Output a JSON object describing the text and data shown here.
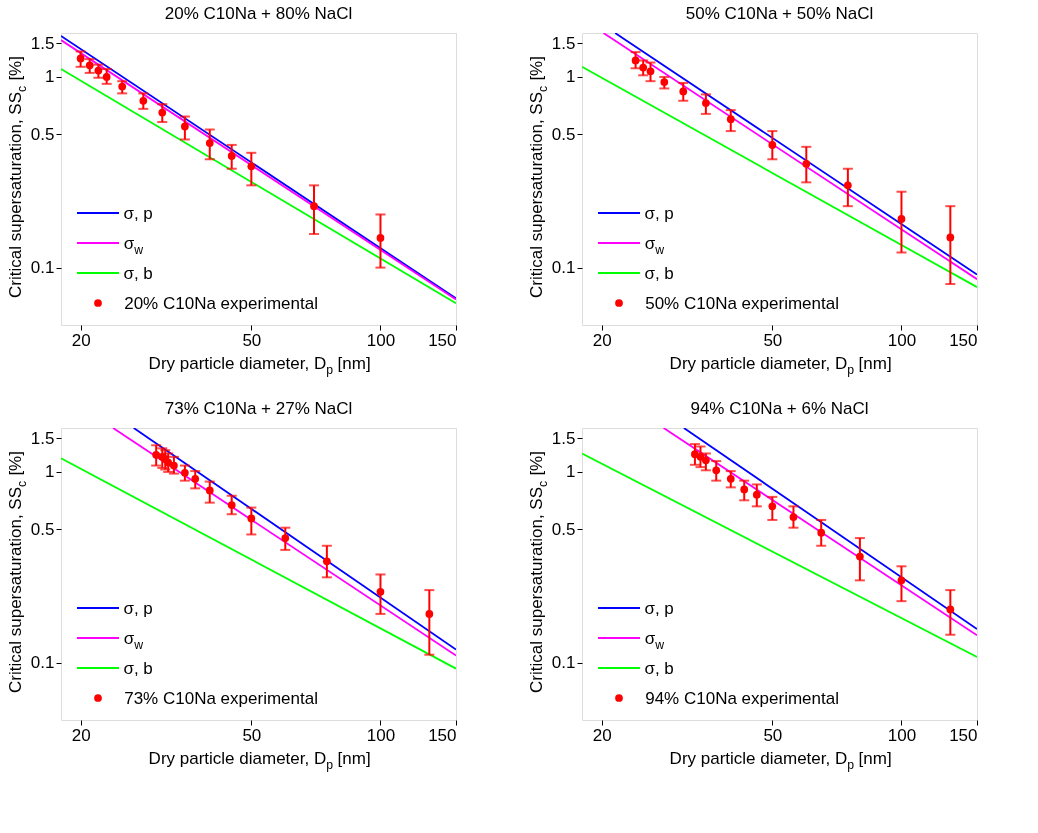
{
  "chart_data": [
    {
      "type": "line",
      "title": "20% C10Na + 80% NaCl",
      "xlabel": "Dry particle diameter, D$_{p}$ [nm]",
      "ylabel": "Critical supersaturation, SS$_{c}$ [%]",
      "log": "xy",
      "xlim": [
        18,
        150
      ],
      "ylim": [
        0.05,
        1.7
      ],
      "xticks": [
        20,
        50,
        100,
        150
      ],
      "yticks": [
        0.1,
        0.5,
        1,
        1.5
      ],
      "legend": "bottom left",
      "series": [
        {
          "name": "σ, p",
          "color": "#0000ff",
          "x": [
            18,
            150
          ],
          "values": [
            1.64,
            0.069
          ]
        },
        {
          "name": "σ$_{w}$",
          "color": "#ff00ff",
          "x": [
            18,
            150
          ],
          "values": [
            1.56,
            0.068
          ]
        },
        {
          "name": "σ, b",
          "color": "#00ff00",
          "x": [
            18,
            150
          ],
          "values": [
            1.1,
            0.065
          ]
        },
        {
          "name": "20% C10Na experimental",
          "type": "scatter",
          "marker": "circle",
          "color": "#ff0000",
          "x": [
            20,
            21,
            22,
            23,
            25,
            28,
            31,
            35,
            40,
            45,
            50,
            70,
            100
          ],
          "values": [
            1.25,
            1.15,
            1.08,
            1.0,
            0.89,
            0.75,
            0.65,
            0.55,
            0.45,
            0.385,
            0.34,
            0.21,
            0.143
          ],
          "errors": [
            [
              1.13,
              1.36
            ],
            [
              1.05,
              1.24
            ],
            [
              0.99,
              1.16
            ],
            [
              0.92,
              1.1
            ],
            [
              0.82,
              0.95
            ],
            [
              0.68,
              0.82
            ],
            [
              0.58,
              0.72
            ],
            [
              0.47,
              0.62
            ],
            [
              0.37,
              0.53
            ],
            [
              0.33,
              0.44
            ],
            [
              0.27,
              0.4
            ],
            [
              0.15,
              0.27
            ],
            [
              0.1,
              0.19
            ]
          ]
        }
      ]
    },
    {
      "type": "line",
      "title": "50% C10Na + 50% NaCl",
      "xlabel": "Dry particle diameter, D$_{p}$ [nm]",
      "ylabel": "Critical supersaturation, SS$_{c}$ [%]",
      "log": "xy",
      "xlim": [
        18,
        150
      ],
      "ylim": [
        0.05,
        1.7
      ],
      "xticks": [
        20,
        50,
        100,
        150
      ],
      "yticks": [
        0.1,
        0.5,
        1,
        1.5
      ],
      "legend": "bottom left",
      "series": [
        {
          "name": "σ, p",
          "color": "#0000ff",
          "x": [
            21.5,
            150
          ],
          "values": [
            1.7,
            0.092
          ]
        },
        {
          "name": "σ$_{w}$",
          "color": "#ff00ff",
          "x": [
            20.2,
            150
          ],
          "values": [
            1.7,
            0.087
          ]
        },
        {
          "name": "σ, b",
          "color": "#00ff00",
          "x": [
            18,
            150
          ],
          "values": [
            1.13,
            0.079
          ]
        },
        {
          "name": "50% C10Na experimental",
          "type": "scatter",
          "marker": "circle",
          "color": "#ff0000",
          "x": [
            24,
            25,
            26,
            28,
            31,
            35,
            40,
            50,
            60,
            75,
            100,
            130
          ],
          "values": [
            1.22,
            1.12,
            1.07,
            0.94,
            0.84,
            0.73,
            0.6,
            0.44,
            0.35,
            0.27,
            0.18,
            0.144
          ],
          "errors": [
            [
              1.11,
              1.35
            ],
            [
              1.02,
              1.22
            ],
            [
              0.95,
              1.19
            ],
            [
              0.87,
              1.0
            ],
            [
              0.75,
              0.93
            ],
            [
              0.64,
              0.81
            ],
            [
              0.52,
              0.67
            ],
            [
              0.37,
              0.52
            ],
            [
              0.28,
              0.43
            ],
            [
              0.21,
              0.33
            ],
            [
              0.12,
              0.25
            ],
            [
              0.082,
              0.21
            ]
          ]
        }
      ]
    },
    {
      "type": "line",
      "title": "73% C10Na + 27% NaCl",
      "xlabel": "Dry particle diameter, D$_{p}$ [nm]",
      "ylabel": "Critical supersaturation, SS$_{c}$ [%]",
      "log": "xy",
      "xlim": [
        18,
        150
      ],
      "ylim": [
        0.05,
        1.7
      ],
      "xticks": [
        20,
        50,
        100,
        150
      ],
      "yticks": [
        0.1,
        0.5,
        1,
        1.5
      ],
      "legend": "bottom left",
      "series": [
        {
          "name": "σ, p",
          "color": "#0000ff",
          "x": [
            26.6,
            150
          ],
          "values": [
            1.7,
            0.117
          ]
        },
        {
          "name": "σ$_{w}$",
          "color": "#ff00ff",
          "x": [
            23.8,
            150
          ],
          "values": [
            1.7,
            0.109
          ]
        },
        {
          "name": "σ, b",
          "color": "#00ff00",
          "x": [
            18,
            150
          ],
          "values": [
            1.18,
            0.093
          ]
        },
        {
          "name": "73% C10Na experimental",
          "type": "scatter",
          "marker": "circle",
          "color": "#ff0000",
          "x": [
            30,
            31,
            31.5,
            32,
            33,
            35,
            37,
            40,
            45,
            50,
            60,
            75,
            100,
            130
          ],
          "values": [
            1.23,
            1.2,
            1.17,
            1.12,
            1.08,
            0.99,
            0.92,
            0.8,
            0.67,
            0.57,
            0.45,
            0.34,
            0.235,
            0.18
          ],
          "errors": [
            [
              1.08,
              1.38
            ],
            [
              1.05,
              1.33
            ],
            [
              1.03,
              1.3
            ],
            [
              1.0,
              1.25
            ],
            [
              0.98,
              1.2
            ],
            [
              0.9,
              1.08
            ],
            [
              0.82,
              1.01
            ],
            [
              0.69,
              0.89
            ],
            [
              0.6,
              0.75
            ],
            [
              0.47,
              0.65
            ],
            [
              0.39,
              0.51
            ],
            [
              0.28,
              0.41
            ],
            [
              0.18,
              0.29
            ],
            [
              0.11,
              0.24
            ]
          ]
        }
      ]
    },
    {
      "type": "line",
      "title": "94% C10Na + 6% NaCl",
      "xlabel": "Dry particle diameter, D$_{p}$ [nm]",
      "ylabel": "Critical supersaturation, SS$_{c}$ [%]",
      "log": "xy",
      "xlim": [
        18,
        150
      ],
      "ylim": [
        0.05,
        1.7
      ],
      "xticks": [
        20,
        50,
        100,
        150
      ],
      "yticks": [
        0.1,
        0.5,
        1,
        1.5
      ],
      "legend": "bottom left",
      "series": [
        {
          "name": "σ, p",
          "color": "#0000ff",
          "x": [
            31.1,
            150
          ],
          "values": [
            1.7,
            0.15
          ]
        },
        {
          "name": "σ$_{w}$",
          "color": "#ff00ff",
          "x": [
            27.9,
            150
          ],
          "values": [
            1.7,
            0.139
          ]
        },
        {
          "name": "σ, b",
          "color": "#00ff00",
          "x": [
            18,
            150
          ],
          "values": [
            1.25,
            0.107
          ]
        },
        {
          "name": "94% C10Na experimental",
          "type": "scatter",
          "marker": "circle",
          "color": "#ff0000",
          "x": [
            33,
            34,
            35,
            37,
            40,
            43,
            46,
            50,
            56,
            65,
            80,
            100,
            130
          ],
          "values": [
            1.24,
            1.2,
            1.15,
            1.02,
            0.92,
            0.81,
            0.76,
            0.66,
            0.58,
            0.48,
            0.36,
            0.27,
            0.19
          ],
          "errors": [
            [
              1.09,
              1.4
            ],
            [
              1.06,
              1.36
            ],
            [
              1.02,
              1.25
            ],
            [
              0.9,
              1.14
            ],
            [
              0.83,
              1.01
            ],
            [
              0.71,
              0.9
            ],
            [
              0.66,
              0.86
            ],
            [
              0.56,
              0.74
            ],
            [
              0.51,
              0.66
            ],
            [
              0.41,
              0.56
            ],
            [
              0.27,
              0.45
            ],
            [
              0.21,
              0.32
            ],
            [
              0.14,
              0.24
            ]
          ]
        }
      ]
    }
  ]
}
